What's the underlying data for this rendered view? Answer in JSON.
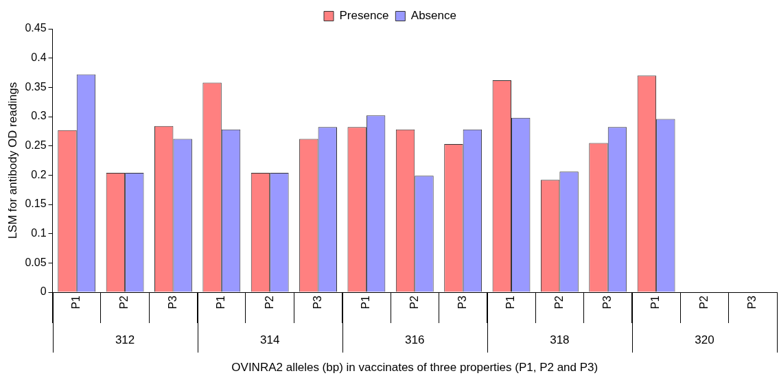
{
  "chart_data": {
    "type": "bar",
    "xlabel": "OVINRA2 alleles (bp) in vaccinates of three properties (P1, P2 and P3)",
    "ylabel": "LSM for antibody OD readings",
    "categories": [
      "P1",
      "P2",
      "P3",
      "P1",
      "P2",
      "P3",
      "P1",
      "P2",
      "P3",
      "P1",
      "P2",
      "P3",
      "P1",
      "P2",
      "P3"
    ],
    "annotations": [
      "312",
      "314",
      "316",
      "318",
      "320"
    ],
    "series": [
      {
        "name": "Presence",
        "color": "#ff8080",
        "values": [
          0.277,
          0.204,
          0.284,
          0.358,
          0.204,
          0.262,
          0.282,
          0.278,
          0.253,
          0.362,
          0.192,
          0.255,
          0.37,
          null,
          null
        ]
      },
      {
        "name": "Absence",
        "color": "#9999ff",
        "values": [
          0.372,
          0.204,
          0.262,
          0.278,
          0.204,
          0.282,
          0.302,
          0.199,
          0.278,
          0.298,
          0.206,
          0.282,
          0.296,
          null,
          null
        ]
      }
    ],
    "ylim": [
      0,
      0.45
    ],
    "yticks": [
      0,
      0.05,
      0.1,
      0.15,
      0.2,
      0.25,
      0.3,
      0.35,
      0.4,
      0.45
    ],
    "grid": false,
    "legend": "top"
  }
}
